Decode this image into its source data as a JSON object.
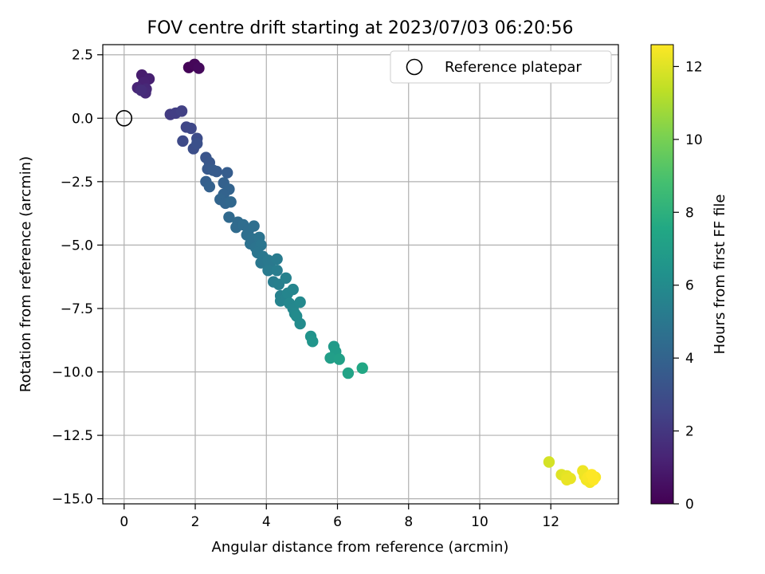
{
  "chart_data": {
    "type": "scatter",
    "title": "FOV centre drift starting at 2023/07/03 06:20:56",
    "xlabel": "Angular distance from reference (arcmin)",
    "ylabel": "Rotation from reference (arcmin)",
    "xlim": [
      -0.6,
      13.9
    ],
    "ylim": [
      -15.2,
      2.9
    ],
    "xticks": [
      0,
      2,
      4,
      6,
      8,
      10,
      12
    ],
    "yticks": [
      2.5,
      0.0,
      -2.5,
      -5.0,
      -7.5,
      -10.0,
      -12.5,
      -15.0
    ],
    "xtick_labels": [
      "0",
      "2",
      "4",
      "6",
      "8",
      "10",
      "12"
    ],
    "ytick_labels": [
      "2.5",
      "0.0",
      "−2.5",
      "−5.0",
      "−7.5",
      "−10.0",
      "−12.5",
      "−15.0"
    ],
    "grid": true,
    "legend": {
      "placement": "upper right",
      "entries": [
        "Reference platepar"
      ]
    },
    "reference_point": {
      "x": 0,
      "y": 0,
      "label": "Reference platepar"
    },
    "colorbar": {
      "label": "Hours from first FF file",
      "colormap": "viridis",
      "range": [
        0,
        12.6
      ],
      "ticks": [
        0,
        2,
        4,
        6,
        8,
        10,
        12
      ],
      "tick_labels": [
        "0",
        "2",
        "4",
        "6",
        "8",
        "10",
        "12"
      ]
    },
    "points": [
      {
        "x": 1.82,
        "y": 2.0,
        "c": 0.1
      },
      {
        "x": 1.98,
        "y": 2.12,
        "c": 0.2
      },
      {
        "x": 2.1,
        "y": 1.97,
        "c": 0.3
      },
      {
        "x": 0.5,
        "y": 1.7,
        "c": 1.0
      },
      {
        "x": 0.7,
        "y": 1.55,
        "c": 1.1
      },
      {
        "x": 0.55,
        "y": 1.4,
        "c": 1.2
      },
      {
        "x": 0.38,
        "y": 1.2,
        "c": 1.3
      },
      {
        "x": 0.62,
        "y": 1.15,
        "c": 1.4
      },
      {
        "x": 0.6,
        "y": 1.0,
        "c": 1.5
      },
      {
        "x": 0.48,
        "y": 1.1,
        "c": 1.6
      },
      {
        "x": 1.3,
        "y": 0.15,
        "c": 2.2
      },
      {
        "x": 1.45,
        "y": 0.2,
        "c": 2.3
      },
      {
        "x": 1.62,
        "y": 0.28,
        "c": 2.4
      },
      {
        "x": 1.75,
        "y": -0.35,
        "c": 2.6
      },
      {
        "x": 1.88,
        "y": -0.4,
        "c": 2.7
      },
      {
        "x": 1.65,
        "y": -0.9,
        "c": 2.8
      },
      {
        "x": 2.05,
        "y": -0.8,
        "c": 2.9
      },
      {
        "x": 1.95,
        "y": -1.2,
        "c": 3.0
      },
      {
        "x": 2.05,
        "y": -1.0,
        "c": 3.1
      },
      {
        "x": 2.3,
        "y": -1.55,
        "c": 3.3
      },
      {
        "x": 2.4,
        "y": -1.75,
        "c": 3.4
      },
      {
        "x": 2.35,
        "y": -2.0,
        "c": 3.5
      },
      {
        "x": 2.5,
        "y": -2.05,
        "c": 3.6
      },
      {
        "x": 2.6,
        "y": -2.1,
        "c": 3.6
      },
      {
        "x": 2.9,
        "y": -2.15,
        "c": 3.7
      },
      {
        "x": 2.3,
        "y": -2.5,
        "c": 3.8
      },
      {
        "x": 2.4,
        "y": -2.7,
        "c": 3.9
      },
      {
        "x": 2.8,
        "y": -2.55,
        "c": 3.9
      },
      {
        "x": 2.95,
        "y": -2.8,
        "c": 4.0
      },
      {
        "x": 2.8,
        "y": -3.0,
        "c": 4.0
      },
      {
        "x": 2.7,
        "y": -3.2,
        "c": 4.1
      },
      {
        "x": 2.85,
        "y": -3.35,
        "c": 4.1
      },
      {
        "x": 3.0,
        "y": -3.3,
        "c": 4.2
      },
      {
        "x": 2.95,
        "y": -3.9,
        "c": 4.3
      },
      {
        "x": 3.2,
        "y": -4.1,
        "c": 4.4
      },
      {
        "x": 3.15,
        "y": -4.3,
        "c": 4.4
      },
      {
        "x": 3.35,
        "y": -4.2,
        "c": 4.5
      },
      {
        "x": 3.5,
        "y": -4.4,
        "c": 4.5
      },
      {
        "x": 3.65,
        "y": -4.25,
        "c": 4.6
      },
      {
        "x": 3.45,
        "y": -4.6,
        "c": 4.6
      },
      {
        "x": 3.6,
        "y": -4.75,
        "c": 4.7
      },
      {
        "x": 3.55,
        "y": -4.95,
        "c": 4.7
      },
      {
        "x": 3.8,
        "y": -4.7,
        "c": 4.8
      },
      {
        "x": 3.7,
        "y": -5.1,
        "c": 4.8
      },
      {
        "x": 3.85,
        "y": -5.0,
        "c": 4.9
      },
      {
        "x": 3.75,
        "y": -5.3,
        "c": 4.9
      },
      {
        "x": 3.9,
        "y": -5.45,
        "c": 5.0
      },
      {
        "x": 3.85,
        "y": -5.7,
        "c": 5.0
      },
      {
        "x": 4.05,
        "y": -5.6,
        "c": 5.1
      },
      {
        "x": 4.1,
        "y": -5.8,
        "c": 5.1
      },
      {
        "x": 4.05,
        "y": -6.0,
        "c": 5.2
      },
      {
        "x": 4.3,
        "y": -5.55,
        "c": 5.2
      },
      {
        "x": 4.3,
        "y": -6.0,
        "c": 5.3
      },
      {
        "x": 4.2,
        "y": -6.45,
        "c": 5.3
      },
      {
        "x": 4.35,
        "y": -6.55,
        "c": 5.4
      },
      {
        "x": 4.55,
        "y": -6.3,
        "c": 5.5
      },
      {
        "x": 4.4,
        "y": -7.0,
        "c": 5.5
      },
      {
        "x": 4.4,
        "y": -7.2,
        "c": 5.6
      },
      {
        "x": 4.55,
        "y": -7.1,
        "c": 5.6
      },
      {
        "x": 4.6,
        "y": -6.9,
        "c": 5.7
      },
      {
        "x": 4.75,
        "y": -6.75,
        "c": 5.7
      },
      {
        "x": 4.65,
        "y": -7.3,
        "c": 5.8
      },
      {
        "x": 4.75,
        "y": -7.5,
        "c": 5.8
      },
      {
        "x": 4.8,
        "y": -7.7,
        "c": 5.9
      },
      {
        "x": 4.95,
        "y": -7.25,
        "c": 5.9
      },
      {
        "x": 4.85,
        "y": -7.8,
        "c": 6.0
      },
      {
        "x": 4.95,
        "y": -8.1,
        "c": 6.0
      },
      {
        "x": 5.25,
        "y": -8.6,
        "c": 6.4
      },
      {
        "x": 5.3,
        "y": -8.8,
        "c": 6.5
      },
      {
        "x": 5.9,
        "y": -9.0,
        "c": 6.8
      },
      {
        "x": 5.95,
        "y": -9.2,
        "c": 6.9
      },
      {
        "x": 5.8,
        "y": -9.45,
        "c": 7.0
      },
      {
        "x": 6.05,
        "y": -9.5,
        "c": 7.1
      },
      {
        "x": 6.3,
        "y": -10.05,
        "c": 7.3
      },
      {
        "x": 6.7,
        "y": -9.85,
        "c": 7.5
      },
      {
        "x": 11.95,
        "y": -13.55,
        "c": 11.8
      },
      {
        "x": 12.3,
        "y": -14.05,
        "c": 12.0
      },
      {
        "x": 12.45,
        "y": -14.1,
        "c": 12.1
      },
      {
        "x": 12.55,
        "y": -14.2,
        "c": 12.2
      },
      {
        "x": 12.45,
        "y": -14.25,
        "c": 12.2
      },
      {
        "x": 12.9,
        "y": -13.9,
        "c": 12.3
      },
      {
        "x": 12.95,
        "y": -14.1,
        "c": 12.3
      },
      {
        "x": 13.0,
        "y": -14.25,
        "c": 12.4
      },
      {
        "x": 13.1,
        "y": -14.35,
        "c": 12.4
      },
      {
        "x": 13.05,
        "y": -14.15,
        "c": 12.5
      },
      {
        "x": 13.25,
        "y": -14.15,
        "c": 12.5
      },
      {
        "x": 13.2,
        "y": -14.25,
        "c": 12.6
      },
      {
        "x": 13.15,
        "y": -14.05,
        "c": 12.6
      }
    ]
  }
}
